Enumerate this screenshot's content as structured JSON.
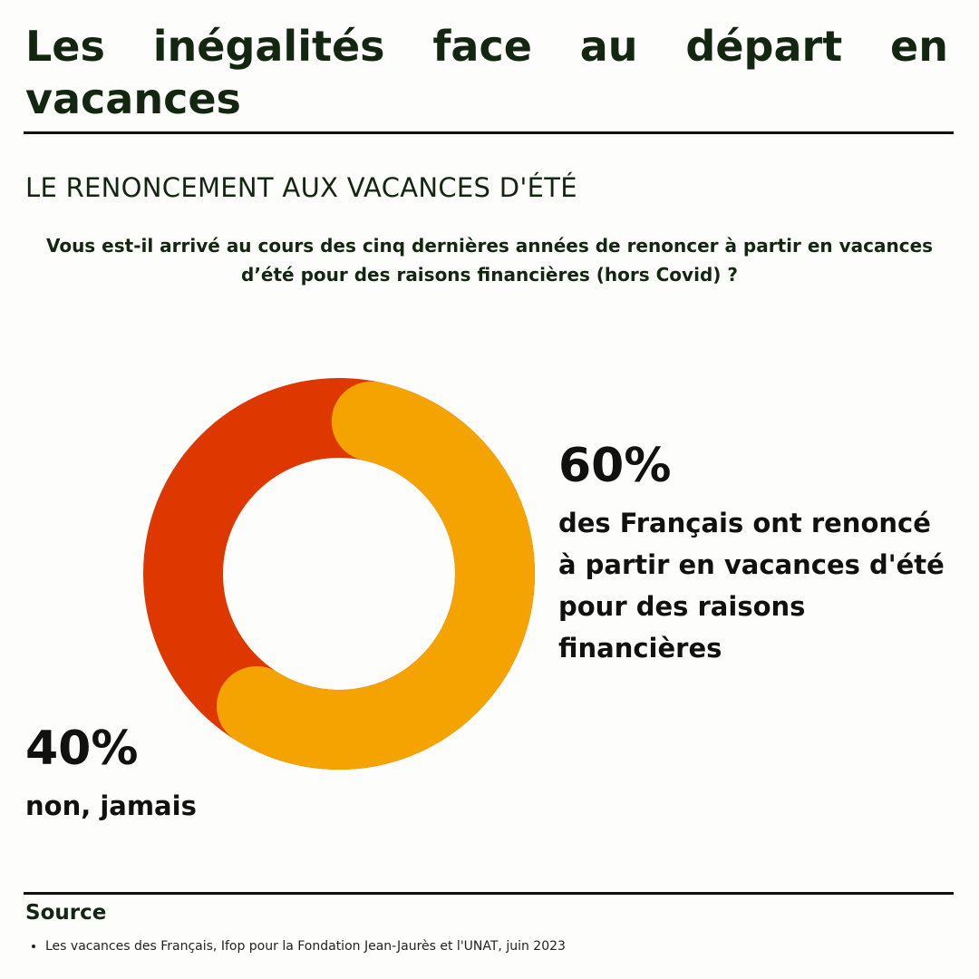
{
  "header": {
    "title": "Les inégalités face au départ en vacances",
    "subtitle": "LE RENONCEMENT AUX VACANCES D'ÉTÉ",
    "question": "Vous est-il arrivé au cours des cinq dernières années de renoncer à partir en vacances d’été pour des raisons financières (hors Covid) ?"
  },
  "chart_data": {
    "type": "pie",
    "variant": "donut",
    "slices": [
      {
        "label": "des Français ont renoncé à partir en vacances d'été pour des raisons financières",
        "value": 60,
        "display": "60%",
        "color": "#f5a300"
      },
      {
        "label": "non, jamais",
        "value": 40,
        "display": "40%",
        "color": "#de3800"
      }
    ]
  },
  "annotations": {
    "yes_pct": "60%",
    "yes_text": "des Français ont renoncé à partir en vacances d'été pour des raisons financières",
    "no_pct": "40%",
    "no_text": "non, jamais"
  },
  "source": {
    "heading": "Source",
    "items": [
      "Les vacances des Français, Ifop pour la Fondation Jean-Jaurès et l'UNAT, juin 2023"
    ]
  }
}
